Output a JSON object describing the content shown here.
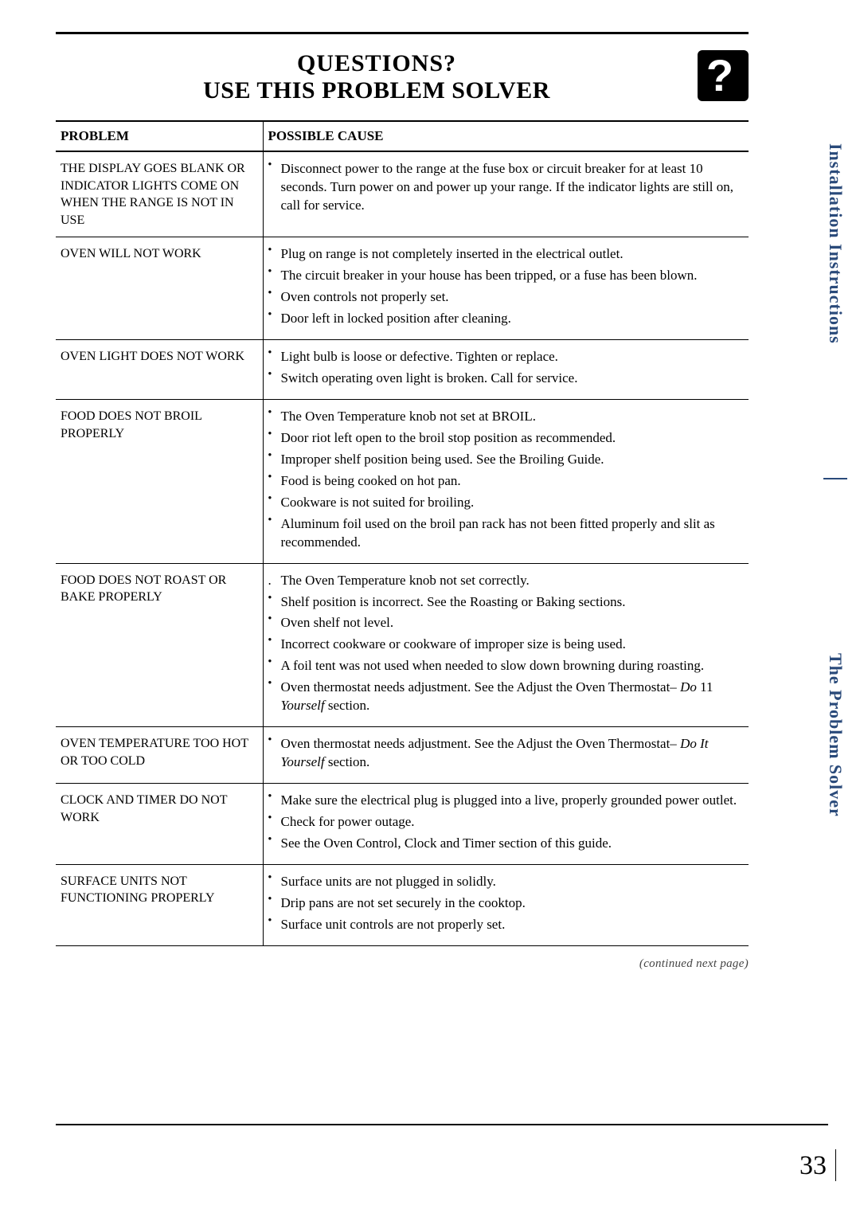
{
  "header": {
    "title_line1": "QUESTIONS?",
    "title_line2": "USE THIS PROBLEM SOLVER",
    "icon_glyph": "?"
  },
  "table": {
    "col_problem": "PROBLEM",
    "col_cause": "POSSIBLE CAUSE",
    "rows": [
      {
        "problem": "THE DISPLAY GOES BLANK OR INDICATOR LIGHTS COME ON WHEN THE RANGE IS NOT IN USE",
        "causes": [
          {
            "bullet": "dot",
            "text": "Disconnect power to the range at the fuse box or circuit breaker for at least 10 seconds. Turn power on and power up your range. If the indicator lights are still on, call for service."
          }
        ]
      },
      {
        "problem": "OVEN WILL NOT WORK",
        "causes": [
          {
            "bullet": "dot",
            "text": "Plug on range is not completely inserted in the electrical outlet."
          },
          {
            "bullet": "dot",
            "text": "The circuit breaker in your house has been tripped, or a fuse has been blown."
          },
          {
            "bullet": "dot",
            "text": "Oven controls not properly set."
          },
          {
            "bullet": "dot",
            "text": "Door left in locked position after cleaning."
          }
        ]
      },
      {
        "problem": "OVEN LIGHT DOES NOT WORK",
        "causes": [
          {
            "bullet": "dot",
            "text": "Light bulb is loose or defective. Tighten or replace."
          },
          {
            "bullet": "dot",
            "text": "Switch operating oven light is broken. Call for service."
          }
        ]
      },
      {
        "problem": "FOOD DOES NOT BROIL PROPERLY",
        "causes": [
          {
            "bullet": "dot",
            "text": "The Oven Temperature knob not set at BROIL."
          },
          {
            "bullet": "dot",
            "text": "Door riot left open to the broil stop position as recommended."
          },
          {
            "bullet": "dot",
            "text": "Improper shelf position being used. See the Broiling Guide."
          },
          {
            "bullet": "dot",
            "text": "Food is being cooked on hot pan."
          },
          {
            "bullet": "dot",
            "text": "Cookware is not suited for broiling."
          },
          {
            "bullet": "dot",
            "text": "Aluminum foil used on the broil pan rack has not been fitted properly and slit as recommended."
          }
        ]
      },
      {
        "problem": "FOOD DOES NOT ROAST OR BAKE PROPERLY",
        "causes": [
          {
            "bullet": "period",
            "text": "The Oven Temperature knob not set correctly."
          },
          {
            "bullet": "dot",
            "text": "Shelf position is incorrect. See the Roasting or Baking sections."
          },
          {
            "bullet": "dot",
            "text": "Oven shelf not level."
          },
          {
            "bullet": "dot",
            "text": "Incorrect cookware or cookware of improper size is being used."
          },
          {
            "bullet": "dot",
            "text": "A foil tent was not used when needed to slow down browning during roasting."
          },
          {
            "bullet": "dot",
            "text_html": "Oven thermostat needs adjustment. See the Adjust the Oven Thermostat– <span class=\"italic\">Do</span> 11 <span class=\"italic\">Yourself</span> section."
          }
        ]
      },
      {
        "problem": "OVEN TEMPERATURE TOO HOT OR TOO COLD",
        "causes": [
          {
            "bullet": "dot",
            "text_html": "Oven thermostat needs adjustment. See the Adjust the Oven Thermostat– <span class=\"italic\">Do It Yourself</span> section."
          }
        ]
      },
      {
        "problem": "CLOCK AND TIMER DO NOT WORK",
        "causes": [
          {
            "bullet": "dot",
            "text": "Make sure the electrical plug is plugged into a live, properly grounded power outlet."
          },
          {
            "bullet": "dot",
            "text": "Check for power outage."
          },
          {
            "bullet": "dot",
            "text": "See the Oven Control, Clock and Timer section of this guide."
          }
        ]
      },
      {
        "problem": "SURFACE UNITS NOT FUNCTIONING PROPERLY",
        "causes": [
          {
            "bullet": "dot",
            "text": "Surface units are not plugged in solidly."
          },
          {
            "bullet": "dot",
            "text": "Drip pans are not set securely in the cooktop."
          },
          {
            "bullet": "dot",
            "text": "Surface unit controls are not properly set."
          }
        ]
      }
    ]
  },
  "continued_text": "(continued next page)",
  "sidebar": {
    "install": "Installation Instructions",
    "problem": "The Problem Solver"
  },
  "page_number": "33"
}
